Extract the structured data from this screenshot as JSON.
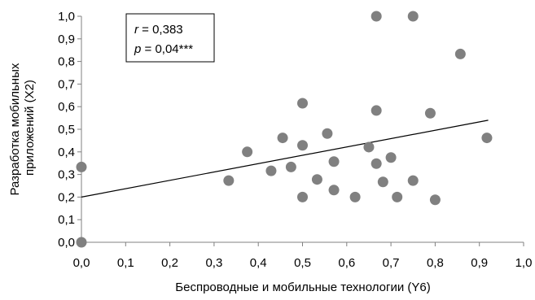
{
  "chart_data": {
    "type": "scatter",
    "xlabel": "Беспроводные и мобильные технологии (Y6)",
    "ylabel_lines": [
      "Разработка мобильных",
      "приложений (X2)"
    ],
    "xlim": [
      0,
      1
    ],
    "ylim": [
      0,
      1
    ],
    "x_ticks": [
      "0,0",
      "0,1",
      "0,2",
      "0,3",
      "0,4",
      "0,5",
      "0,6",
      "0,7",
      "0,8",
      "0,9",
      "1,0"
    ],
    "y_ticks": [
      "0,0",
      "0,1",
      "0,2",
      "0,3",
      "0,4",
      "0,5",
      "0,6",
      "0,7",
      "0,8",
      "0,9",
      "1,0"
    ],
    "grid": false,
    "colors": {
      "points": "#808080",
      "trendline": "#000000",
      "axes": "#808080"
    },
    "points": [
      {
        "x": 0.0,
        "y": 0.0
      },
      {
        "x": 0.0,
        "y": 0.333
      },
      {
        "x": 0.333,
        "y": 0.273
      },
      {
        "x": 0.375,
        "y": 0.4
      },
      {
        "x": 0.429,
        "y": 0.316
      },
      {
        "x": 0.455,
        "y": 0.462
      },
      {
        "x": 0.474,
        "y": 0.333
      },
      {
        "x": 0.5,
        "y": 0.2
      },
      {
        "x": 0.5,
        "y": 0.429
      },
      {
        "x": 0.5,
        "y": 0.615
      },
      {
        "x": 0.533,
        "y": 0.278
      },
      {
        "x": 0.556,
        "y": 0.481
      },
      {
        "x": 0.571,
        "y": 0.231
      },
      {
        "x": 0.571,
        "y": 0.357
      },
      {
        "x": 0.619,
        "y": 0.2
      },
      {
        "x": 0.65,
        "y": 0.421
      },
      {
        "x": 0.667,
        "y": 0.348
      },
      {
        "x": 0.667,
        "y": 0.583
      },
      {
        "x": 0.667,
        "y": 1.0
      },
      {
        "x": 0.682,
        "y": 0.267
      },
      {
        "x": 0.7,
        "y": 0.375
      },
      {
        "x": 0.714,
        "y": 0.2
      },
      {
        "x": 0.75,
        "y": 0.273
      },
      {
        "x": 0.75,
        "y": 1.0
      },
      {
        "x": 0.789,
        "y": 0.571
      },
      {
        "x": 0.8,
        "y": 0.188
      },
      {
        "x": 0.857,
        "y": 0.833
      },
      {
        "x": 0.917,
        "y": 0.462
      }
    ],
    "trendline": {
      "x": [
        0.0,
        0.92
      ],
      "y": [
        0.2,
        0.54
      ]
    },
    "annotation": {
      "r_symbol": "r",
      "r_value": " = 0,383",
      "p_symbol": "p",
      "p_value": " = 0,04***"
    }
  }
}
